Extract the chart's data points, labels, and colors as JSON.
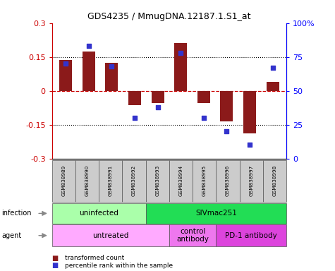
{
  "title": "GDS4235 / MmugDNA.12187.1.S1_at",
  "samples": [
    "GSM838989",
    "GSM838990",
    "GSM838991",
    "GSM838992",
    "GSM838993",
    "GSM838994",
    "GSM838995",
    "GSM838996",
    "GSM838997",
    "GSM838998"
  ],
  "transformed_counts": [
    0.135,
    0.175,
    0.125,
    -0.065,
    -0.055,
    0.21,
    -0.055,
    -0.135,
    -0.19,
    0.04
  ],
  "percentile_ranks": [
    70,
    83,
    68,
    30,
    38,
    78,
    30,
    20,
    10,
    67
  ],
  "ylim_left": [
    -0.3,
    0.3
  ],
  "ylim_right": [
    0,
    100
  ],
  "yticks_left": [
    -0.3,
    -0.15,
    0,
    0.15,
    0.3
  ],
  "yticks_right": [
    0,
    25,
    50,
    75,
    100
  ],
  "ytick_labels_right": [
    "0",
    "25",
    "50",
    "75",
    "100%"
  ],
  "bar_color": "#8B1A1A",
  "dot_color": "#3333CC",
  "infection_groups": [
    {
      "label": "uninfected",
      "start": 0,
      "end": 3,
      "color": "#AAFFAA"
    },
    {
      "label": "SIVmac251",
      "start": 4,
      "end": 9,
      "color": "#22DD55"
    }
  ],
  "agent_groups": [
    {
      "label": "untreated",
      "start": 0,
      "end": 4,
      "color": "#FFAAFF"
    },
    {
      "label": "control\nantibody",
      "start": 5,
      "end": 6,
      "color": "#EE77EE"
    },
    {
      "label": "PD-1 antibody",
      "start": 7,
      "end": 9,
      "color": "#DD44DD"
    }
  ],
  "legend_items": [
    {
      "label": "transformed count",
      "color": "#8B1A1A"
    },
    {
      "label": "percentile rank within the sample",
      "color": "#3333CC"
    }
  ],
  "zero_line_color": "#CC0000",
  "dotted_line_color": "black",
  "bar_width": 0.55
}
